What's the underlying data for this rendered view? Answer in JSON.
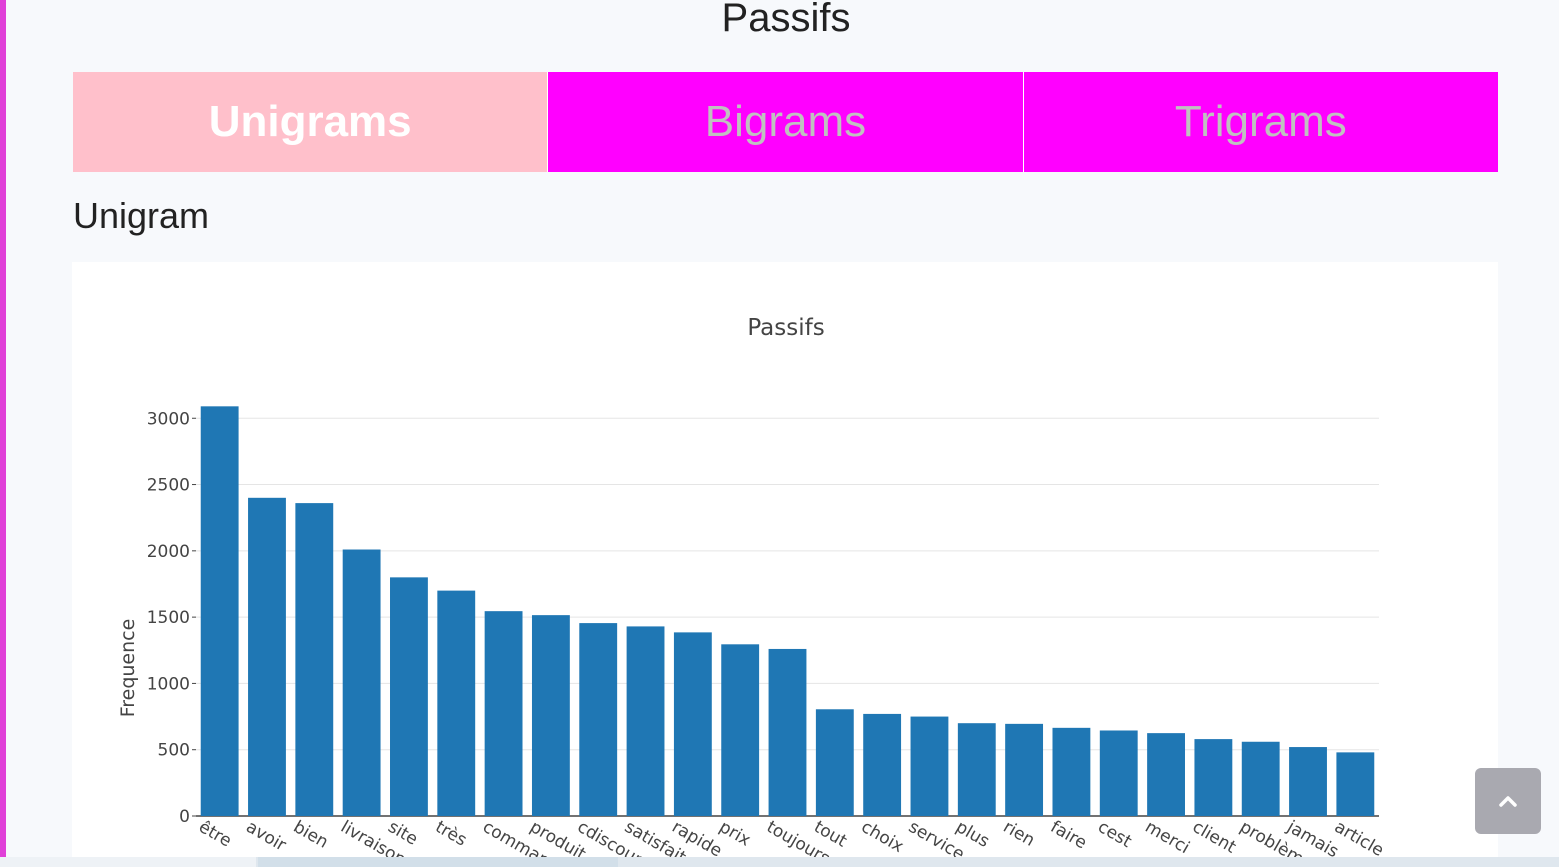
{
  "page": {
    "title": "Passifs",
    "section_title": "Unigram",
    "scroll_top_icon": "chevron-up-icon"
  },
  "colors": {
    "tab_active": "#ffc0cb",
    "tab_inactive": "#ff00ff",
    "bar": "#1f77b4",
    "accent": "#e040d8"
  },
  "tabs": [
    {
      "label": "Unigrams",
      "active": true
    },
    {
      "label": "Bigrams",
      "active": false
    },
    {
      "label": "Trigrams",
      "active": false
    }
  ],
  "chart_data": {
    "type": "bar",
    "title": "Passifs",
    "xlabel": "",
    "ylabel": "Frequence",
    "ylim": [
      0,
      3100
    ],
    "yticks": [
      0,
      500,
      1000,
      1500,
      2000,
      2500,
      3000
    ],
    "grid": true,
    "categories": [
      "être",
      "avoir",
      "bien",
      "livraison",
      "site",
      "très",
      "commande",
      "produit",
      "cdiscount",
      "satisfait",
      "rapide",
      "prix",
      "toujours",
      "tout",
      "choix",
      "service",
      "plus",
      "rien",
      "faire",
      "cest",
      "merci",
      "client",
      "problème",
      "jamais",
      "article"
    ],
    "values": [
      3090,
      2400,
      2360,
      2010,
      1800,
      1700,
      1545,
      1515,
      1455,
      1430,
      1385,
      1295,
      1260,
      805,
      770,
      750,
      700,
      695,
      665,
      645,
      625,
      580,
      560,
      520,
      480
    ]
  }
}
